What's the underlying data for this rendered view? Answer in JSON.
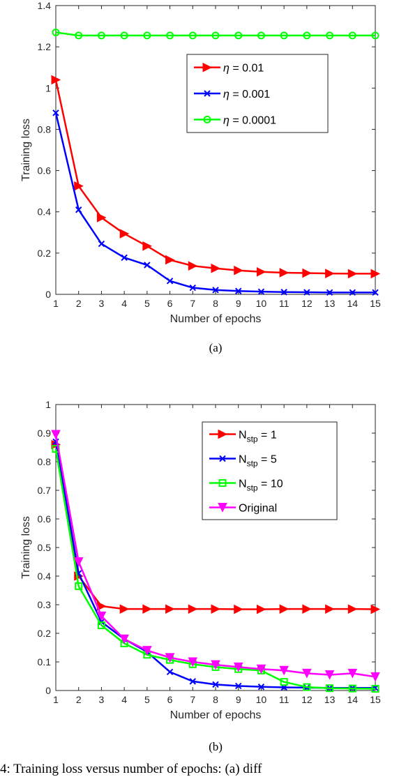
{
  "colors": {
    "red": "#ff0000",
    "blue": "#0000ff",
    "green": "#00ff00",
    "magenta": "#ff00ff"
  },
  "chart_data": [
    {
      "type": "line",
      "caption": "(a)",
      "xlabel": "Number of epochs",
      "ylabel": "Training loss",
      "xlim": [
        1,
        15
      ],
      "ylim": [
        0,
        1.4
      ],
      "xticks": [
        1,
        2,
        3,
        4,
        5,
        6,
        7,
        8,
        9,
        10,
        11,
        12,
        13,
        14,
        15
      ],
      "yticks": [
        0,
        0.2,
        0.4,
        0.6,
        0.8,
        1,
        1.2,
        1.4
      ],
      "legend_position": "top-right",
      "x": [
        1,
        2,
        3,
        4,
        5,
        6,
        7,
        8,
        9,
        10,
        11,
        12,
        13,
        14,
        15
      ],
      "series": [
        {
          "name": "η = 0.01",
          "legend_main": "η",
          "legend_rest": " = 0.01",
          "color": "#ff0000",
          "marker": "triangle-right",
          "values": [
            1.04,
            0.525,
            0.372,
            0.294,
            0.234,
            0.167,
            0.138,
            0.126,
            0.116,
            0.109,
            0.105,
            0.103,
            0.101,
            0.1,
            0.1
          ]
        },
        {
          "name": "η = 0.001",
          "legend_main": "η",
          "legend_rest": " = 0.001",
          "color": "#0000ff",
          "marker": "x",
          "values": [
            0.88,
            0.41,
            0.245,
            0.178,
            0.142,
            0.065,
            0.032,
            0.021,
            0.016,
            0.013,
            0.011,
            0.01,
            0.009,
            0.009,
            0.009
          ]
        },
        {
          "name": "η = 0.0001",
          "legend_main": "η",
          "legend_rest": " = 0.0001",
          "color": "#00ff00",
          "marker": "circle",
          "values": [
            1.27,
            1.255,
            1.255,
            1.255,
            1.255,
            1.255,
            1.255,
            1.255,
            1.255,
            1.255,
            1.255,
            1.255,
            1.255,
            1.255,
            1.255
          ]
        }
      ]
    },
    {
      "type": "line",
      "caption": "(b)",
      "xlabel": "Number of epochs",
      "ylabel": "Training loss",
      "xlim": [
        1,
        15
      ],
      "ylim": [
        0,
        1
      ],
      "xticks": [
        1,
        2,
        3,
        4,
        5,
        6,
        7,
        8,
        9,
        10,
        11,
        12,
        13,
        14,
        15
      ],
      "yticks": [
        0,
        0.1,
        0.2,
        0.3,
        0.4,
        0.5,
        0.6,
        0.7,
        0.8,
        0.9,
        1
      ],
      "legend_position": "top-right",
      "x": [
        1,
        2,
        3,
        4,
        5,
        6,
        7,
        8,
        9,
        10,
        11,
        12,
        13,
        14,
        15
      ],
      "series": [
        {
          "name": "Nstp = 1",
          "legend_main": "N",
          "legend_sub": "stp",
          "legend_rest": " = 1",
          "color": "#ff0000",
          "marker": "triangle-right",
          "values": [
            0.86,
            0.4,
            0.295,
            0.285,
            0.285,
            0.285,
            0.285,
            0.285,
            0.284,
            0.284,
            0.285,
            0.285,
            0.285,
            0.285,
            0.284
          ]
        },
        {
          "name": "Nstp = 5",
          "legend_main": "N",
          "legend_sub": "stp",
          "legend_rest": " = 5",
          "color": "#0000ff",
          "marker": "x",
          "values": [
            0.87,
            0.41,
            0.24,
            0.18,
            0.135,
            0.065,
            0.032,
            0.021,
            0.016,
            0.013,
            0.011,
            0.01,
            0.009,
            0.009,
            0.009
          ]
        },
        {
          "name": "Nstp = 10",
          "legend_main": "N",
          "legend_sub": "stp",
          "legend_rest": " = 10",
          "color": "#00ff00",
          "marker": "square",
          "values": [
            0.845,
            0.365,
            0.228,
            0.165,
            0.125,
            0.107,
            0.092,
            0.082,
            0.075,
            0.07,
            0.03,
            0.012,
            0.008,
            0.007,
            0.006
          ]
        },
        {
          "name": "Original",
          "legend_main": "Original",
          "legend_rest": "",
          "color": "#ff00ff",
          "marker": "triangle-down",
          "values": [
            0.895,
            0.45,
            0.26,
            0.18,
            0.14,
            0.115,
            0.1,
            0.09,
            0.082,
            0.075,
            0.07,
            0.06,
            0.055,
            0.06,
            0.048
          ]
        }
      ]
    }
  ],
  "footer_text": "4: Training loss versus number of epochs: (a) diff"
}
